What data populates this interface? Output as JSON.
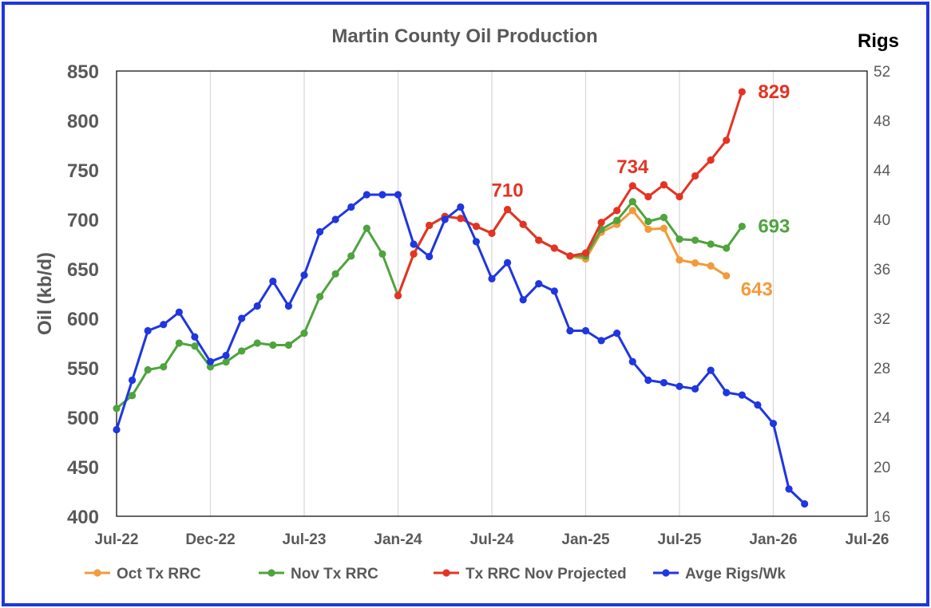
{
  "chart_data": {
    "type": "line",
    "title": "Martin County Oil Production",
    "ylabel": "Oil (kb/d)",
    "y2label": "Rigs",
    "ylim": [
      400,
      850
    ],
    "y2lim": [
      16,
      52
    ],
    "yticks": [
      "850",
      "800",
      "750",
      "700",
      "650",
      "600",
      "550",
      "500",
      "450",
      "400"
    ],
    "y2ticks": [
      "52",
      "48",
      "44",
      "40",
      "36",
      "32",
      "28",
      "24",
      "20",
      "16"
    ],
    "xlim": [
      "2022-07",
      "2026-07"
    ],
    "xticks": [
      "Jul-22",
      "Dec-22",
      "Jul-23",
      "Jan-24",
      "Jul-24",
      "Jan-25",
      "Jul-25",
      "Jan-26",
      "Jul-26"
    ],
    "grid": "vertical",
    "legend_position": "bottom",
    "series": [
      {
        "name": "Oct Tx RRC",
        "color": "#F39A3A",
        "axis": "left",
        "x": [
          "2024-12",
          "2025-01",
          "2025-02",
          "2025-03",
          "2025-04",
          "2025-05",
          "2025-06",
          "2025-07",
          "2025-08",
          "2025-09",
          "2025-10"
        ],
        "values": [
          663,
          660,
          687,
          695,
          709,
          690,
          691,
          659,
          656,
          653,
          643
        ]
      },
      {
        "name": "Nov Tx RRC",
        "color": "#4EA43D",
        "axis": "left",
        "x": [
          "2022-07",
          "2022-08",
          "2022-09",
          "2022-10",
          "2022-11",
          "2022-12",
          "2023-01",
          "2023-02",
          "2023-03",
          "2023-04",
          "2023-05",
          "2023-06",
          "2023-07",
          "2023-08",
          "2023-09",
          "2023-10",
          "2023-11",
          "2023-12",
          "2024-01",
          "2024-02",
          "2024-03",
          "2024-04",
          "2024-05",
          "2024-06",
          "2024-07",
          "2024-08",
          "2024-09",
          "2024-10",
          "2024-11",
          "2024-12",
          "2025-01",
          "2025-02",
          "2025-03",
          "2025-04",
          "2025-05",
          "2025-06",
          "2025-07",
          "2025-08",
          "2025-09",
          "2025-10",
          "2025-11"
        ],
        "values": [
          509,
          522,
          548,
          551,
          575,
          572,
          551,
          556,
          567,
          575,
          573,
          573,
          585,
          622,
          645,
          663,
          691,
          665,
          623,
          665,
          694,
          703,
          701,
          693,
          686,
          710,
          695,
          679,
          671,
          663,
          663,
          690,
          699,
          718,
          698,
          702,
          680,
          679,
          675,
          671,
          693
        ]
      },
      {
        "name": "Tx RRC Nov Projected",
        "color": "#E53323",
        "axis": "left",
        "x": [
          "2024-01",
          "2024-02",
          "2024-03",
          "2024-04",
          "2024-05",
          "2024-06",
          "2024-07",
          "2024-08",
          "2024-09",
          "2024-10",
          "2024-11",
          "2024-12",
          "2025-01",
          "2025-02",
          "2025-03",
          "2025-04",
          "2025-05",
          "2025-06",
          "2025-07",
          "2025-08",
          "2025-09",
          "2025-10",
          "2025-11"
        ],
        "values": [
          623,
          665,
          694,
          703,
          701,
          693,
          686,
          710,
          695,
          679,
          671,
          663,
          666,
          697,
          709,
          734,
          723,
          735,
          723,
          744,
          760,
          780,
          829
        ]
      },
      {
        "name": "Avge Rigs/Wk",
        "color": "#1F36E0",
        "axis": "right",
        "x": [
          "2022-07",
          "2022-08",
          "2022-09",
          "2022-10",
          "2022-11",
          "2022-12",
          "2023-01",
          "2023-02",
          "2023-03",
          "2023-04",
          "2023-05",
          "2023-06",
          "2023-07",
          "2023-08",
          "2023-09",
          "2023-10",
          "2023-11",
          "2023-12",
          "2024-01",
          "2024-02",
          "2024-03",
          "2024-04",
          "2024-05",
          "2024-06",
          "2024-07",
          "2024-08",
          "2024-09",
          "2024-10",
          "2024-11",
          "2024-12",
          "2025-01",
          "2025-02",
          "2025-03",
          "2025-04",
          "2025-05",
          "2025-06",
          "2025-07",
          "2025-08",
          "2025-09",
          "2025-10",
          "2025-11",
          "2025-12",
          "2026-01",
          "2026-02",
          "2026-03"
        ],
        "values": [
          23,
          27,
          31,
          31.5,
          32.5,
          30.5,
          28.5,
          29,
          32,
          33,
          35,
          33,
          35.5,
          39,
          40,
          41,
          42,
          42,
          42,
          38,
          37,
          40,
          41,
          38.2,
          35.2,
          36.5,
          33.5,
          34.8,
          34.2,
          31,
          31,
          30.2,
          30.8,
          28.5,
          27,
          26.8,
          26.5,
          26.3,
          27.8,
          26,
          25.8,
          25,
          23.5,
          18.2,
          17
        ]
      }
    ],
    "annotations": [
      {
        "text": "829",
        "color": "#E53323",
        "x": "2025-11",
        "y": 829,
        "offset": "right"
      },
      {
        "text": "710",
        "color": "#E53323",
        "x": "2024-08",
        "y": 710,
        "offset": "above"
      },
      {
        "text": "734",
        "color": "#E53323",
        "x": "2025-04",
        "y": 734,
        "offset": "above"
      },
      {
        "text": "693",
        "color": "#4EA43D",
        "x": "2025-11",
        "y": 693,
        "offset": "right"
      },
      {
        "text": "643",
        "color": "#F39A3A",
        "x": "2025-10",
        "y": 643,
        "offset": "right-below"
      }
    ]
  },
  "frame_color": "#1F36E0"
}
